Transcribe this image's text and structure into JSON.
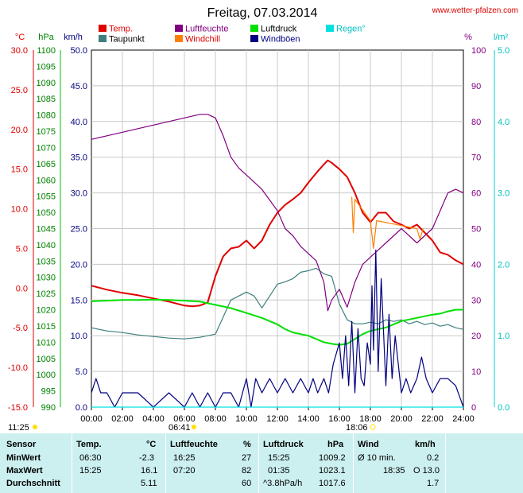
{
  "header": {
    "title": "Freitag, 07.03.2014",
    "site": "www.wetter-pfalzen.com"
  },
  "legend": [
    {
      "name": "Temp.",
      "color": "#e00000"
    },
    {
      "name": "Taupunkt",
      "color": "#3f7f7f"
    },
    {
      "name": "Luftfeuchte",
      "color": "#800080"
    },
    {
      "name": "Windchill",
      "color": "#ff8000"
    },
    {
      "name": "Luftdruck",
      "color": "#00e000"
    },
    {
      "name": "Windböen",
      "color": "#000080"
    },
    {
      "name": "Regen°",
      "color": "#00e0e0"
    }
  ],
  "units": {
    "temp": "°C",
    "pressure": "hPa",
    "wind": "km/h",
    "humidity": "%",
    "rain": "l/m²"
  },
  "sun": {
    "sunrise": "06:41",
    "sunset": "18:06",
    "daylength": "11:25"
  },
  "chart_data": {
    "type": "line",
    "title": "Freitag, 07.03.2014",
    "x_ticks": [
      "00:00",
      "02:00",
      "04:00",
      "06:00",
      "08:00",
      "10:00",
      "12:00",
      "14:00",
      "16:00",
      "18:00",
      "20:00",
      "22:00",
      "24:00"
    ],
    "axes": {
      "temp": {
        "label": "°C",
        "range": [
          -15,
          30
        ],
        "ticks": [
          "30.0",
          "25.0",
          "20.0",
          "15.0",
          "10.0",
          "5.0",
          "0.0",
          "-5.0",
          "-10.0",
          "-15.0"
        ]
      },
      "pressure": {
        "label": "hPa",
        "range": [
          990,
          1100
        ],
        "ticks": [
          "1100",
          "1095",
          "1090",
          "1085",
          "1080",
          "1075",
          "1070",
          "1065",
          "1060",
          "1055",
          "1050",
          "1045",
          "1040",
          "1035",
          "1030",
          "1025",
          "1020",
          "1015",
          "1010",
          "1005",
          "1000",
          "995",
          "990"
        ]
      },
      "wind": {
        "label": "km/h",
        "range": [
          0,
          50
        ],
        "ticks": [
          "50.0",
          "45.0",
          "40.0",
          "35.0",
          "30.0",
          "25.0",
          "20.0",
          "15.0",
          "10.0",
          "5.0",
          "0.0"
        ]
      },
      "humidity": {
        "label": "%",
        "range": [
          0,
          100
        ],
        "ticks": [
          "100",
          "90",
          "80",
          "70",
          "60",
          "50",
          "40",
          "30",
          "20",
          "10",
          "0"
        ]
      },
      "rain": {
        "label": "l/m²",
        "range": [
          0,
          5
        ],
        "ticks": [
          "5.0",
          "4.0",
          "3.0",
          "2.0",
          "1.0",
          "0.0"
        ]
      }
    },
    "series": [
      {
        "name": "Temp.",
        "axis": "temp",
        "color": "#e00000",
        "x": [
          0,
          1,
          2,
          3,
          4,
          5,
          6,
          6.5,
          7,
          7.5,
          8,
          8.5,
          9,
          9.5,
          10,
          10.5,
          11,
          11.5,
          12,
          12.5,
          13,
          13.5,
          14,
          14.5,
          15,
          15.25,
          15.5,
          16,
          16.5,
          17,
          17.5,
          18,
          18.5,
          19,
          19.5,
          20,
          20.5,
          21,
          21.5,
          22,
          22.5,
          23,
          23.5,
          24
        ],
        "y": [
          0.3,
          -0.2,
          -0.6,
          -0.9,
          -1.3,
          -1.7,
          -2.2,
          -2.3,
          -2.2,
          -1.8,
          1.5,
          4.0,
          5.0,
          5.2,
          6.0,
          5.0,
          6.0,
          8.0,
          9.5,
          10.5,
          11.2,
          12.0,
          13.3,
          14.5,
          15.6,
          16.1,
          15.8,
          15.0,
          14.0,
          12.0,
          9.5,
          8.3,
          9.5,
          9.5,
          8.4,
          8.0,
          7.5,
          8.0,
          7.0,
          6.0,
          4.5,
          4.2,
          3.5,
          3.0
        ]
      },
      {
        "name": "Windchill",
        "axis": "temp",
        "color": "#ff8000",
        "x": [
          16.8,
          16.9,
          17.0,
          18.0,
          18.2,
          18.4,
          21.0,
          21.2,
          21.4
        ],
        "y": [
          11.5,
          7.0,
          11.2,
          8.5,
          5.0,
          8.5,
          7.5,
          6.2,
          7.5
        ]
      },
      {
        "name": "Taupunkt",
        "axis": "temp",
        "color": "#3f7f7f",
        "x": [
          0,
          1,
          2,
          3,
          4,
          5,
          6,
          7,
          8,
          9,
          10,
          10.5,
          11,
          11.5,
          12,
          12.5,
          13,
          13.5,
          14,
          14.5,
          15,
          15.5,
          16,
          16.5,
          17,
          17.5,
          18,
          18.5,
          19,
          19.5,
          20,
          20.5,
          21,
          21.5,
          22,
          22.5,
          23,
          23.5,
          24
        ],
        "y": [
          -5.0,
          -5.4,
          -5.6,
          -5.9,
          -6.1,
          -6.3,
          -6.4,
          -6.2,
          -5.8,
          -1.5,
          -0.5,
          -1.0,
          -2.5,
          -1.0,
          0.5,
          0.8,
          1.2,
          2.0,
          2.2,
          2.5,
          1.8,
          1.5,
          -2.0,
          -4.0,
          -4.5,
          -4.5,
          -4.3,
          -4.5,
          -4.0,
          -4.2,
          -4.0,
          -4.5,
          -4.2,
          -4.6,
          -4.4,
          -4.8,
          -4.6,
          -5.0,
          -5.2
        ]
      },
      {
        "name": "Luftfeuchte",
        "axis": "humidity",
        "color": "#800080",
        "x": [
          0,
          1,
          2,
          3,
          4,
          5,
          6,
          7,
          7.5,
          8,
          8.5,
          9,
          9.5,
          10,
          10.5,
          11,
          11.5,
          12,
          12.5,
          13,
          13.5,
          14,
          14.5,
          15,
          15.25,
          15.5,
          16,
          16.5,
          17,
          17.5,
          18,
          18.5,
          19,
          19.5,
          20,
          20.5,
          21,
          21.5,
          22,
          22.5,
          23,
          23.5,
          24
        ],
        "y": [
          75,
          76,
          77,
          78,
          79,
          80,
          81,
          82,
          82,
          81,
          76,
          70,
          67,
          65,
          63,
          61,
          58,
          55,
          50,
          48,
          45,
          43,
          41,
          35,
          27,
          30,
          33,
          28,
          35,
          40,
          42,
          44,
          46,
          48,
          50,
          48,
          46,
          48,
          50,
          55,
          60,
          61,
          60
        ]
      },
      {
        "name": "Luftdruck",
        "axis": "pressure",
        "color": "#00e000",
        "x": [
          0,
          1,
          2,
          3,
          4,
          5,
          6,
          7,
          8,
          9,
          10,
          11,
          12,
          12.5,
          13,
          13.5,
          14,
          14.5,
          15,
          15.5,
          16,
          16.5,
          17,
          17.5,
          18,
          18.5,
          19,
          19.5,
          20,
          20.5,
          21,
          21.5,
          22,
          22.5,
          23,
          23.5,
          24
        ],
        "y": [
          1022.6,
          1022.8,
          1023.0,
          1023.0,
          1023.1,
          1023.0,
          1022.8,
          1022.5,
          1021.5,
          1020.5,
          1019.0,
          1017.5,
          1015.5,
          1014.0,
          1013.0,
          1012.5,
          1012.0,
          1011.0,
          1010.0,
          1009.5,
          1009.2,
          1009.5,
          1011.0,
          1012.5,
          1013.5,
          1014.0,
          1014.5,
          1015.5,
          1016.5,
          1017.0,
          1017.5,
          1018.0,
          1018.5,
          1018.8,
          1019.5,
          1020.0,
          1020.0
        ]
      },
      {
        "name": "Windböen",
        "axis": "wind",
        "color": "#000080",
        "x": [
          0,
          0.3,
          0.6,
          1,
          1.5,
          2,
          3,
          4,
          5,
          6,
          6.5,
          7,
          7.5,
          8,
          8.5,
          9,
          9.5,
          10,
          10.3,
          10.6,
          11,
          11.5,
          12,
          12.5,
          13,
          13.5,
          14,
          14.3,
          14.6,
          15,
          15.3,
          15.6,
          16,
          16.2,
          16.4,
          16.6,
          16.8,
          17,
          17.2,
          17.4,
          17.6,
          17.8,
          18,
          18.1,
          18.2,
          18.35,
          18.5,
          18.7,
          19,
          19.2,
          19.4,
          19.6,
          19.8,
          20,
          20.3,
          20.6,
          21,
          21.3,
          21.6,
          22,
          22.5,
          23,
          23.5,
          24
        ],
        "y": [
          2,
          4,
          2,
          2,
          0,
          2,
          2,
          0,
          2,
          0,
          2,
          0,
          2,
          0,
          2,
          2,
          0,
          4,
          0,
          4,
          2,
          4,
          2,
          4,
          2,
          4,
          2,
          4,
          2,
          4,
          2,
          6,
          9,
          4,
          10,
          3,
          12,
          2,
          11,
          4,
          3,
          9,
          6,
          17,
          8,
          22,
          5,
          18,
          3,
          13,
          4,
          10,
          6,
          2,
          4,
          2,
          4,
          7,
          4,
          2,
          4,
          4,
          3,
          0
        ]
      },
      {
        "name": "Regen°",
        "axis": "rain",
        "color": "#00e0e0",
        "x": [
          0,
          24
        ],
        "y": [
          0.0,
          0.0
        ]
      }
    ]
  },
  "stats": {
    "headers": {
      "sensor": "Sensor",
      "temp": "Temp.",
      "temp_unit": "°C",
      "hum": "Luftfeuchte",
      "hum_unit": "%",
      "pres": "Luftdruck",
      "pres_unit": "hPa",
      "wind": "Wind",
      "wind_unit": "km/h"
    },
    "rows": [
      {
        "label": "MinWert",
        "t_time": "06:30",
        "t_val": "-2.3",
        "h_time": "16:25",
        "h_val": "27",
        "p_time": "15:25",
        "p_val": "1009.2",
        "w_time": "Ø 10 min.",
        "w_val": "0.2"
      },
      {
        "label": "MaxWert",
        "t_time": "15:25",
        "t_val": "16.1",
        "h_time": "07:20",
        "h_val": "82",
        "p_time": "01:35",
        "p_val": "1023.1",
        "w_time": "18:35",
        "w_val": "O 13.0"
      },
      {
        "label": "Durchschnitt",
        "t_time": "",
        "t_val": "5.11",
        "h_time": "",
        "h_val": "60",
        "p_time": "^3.8hPa/h",
        "p_val": "1017.6",
        "w_time": "",
        "w_val": "1.7"
      }
    ]
  }
}
